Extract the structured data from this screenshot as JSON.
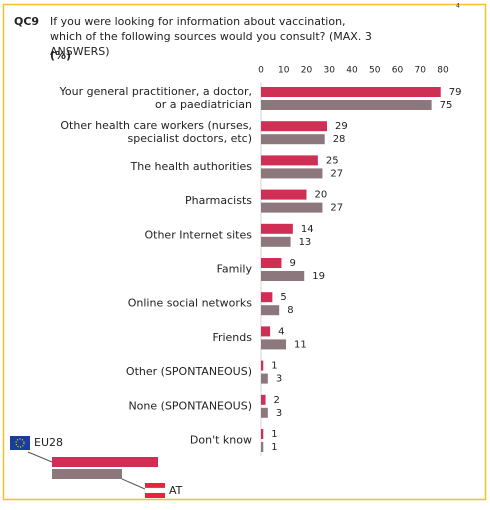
{
  "chart_data": {
    "type": "hbar",
    "question_code": "QC9",
    "title": "If you were looking for information about vaccination, which of the following sources would you consult? (MAX. 3 ANSWERS)",
    "unit_label": "(%)",
    "corner_note": "4",
    "categories": [
      "Your general practitioner, a doctor,\nor a paediatrician",
      "Other health care workers (nurses,\nspecialist doctors, etc)",
      "The health authorities",
      "Pharmacists",
      "Other Internet sites",
      "Family",
      "Online social networks",
      "Friends",
      "Other (SPONTANEOUS)",
      "None (SPONTANEOUS)",
      "Don't know"
    ],
    "series": [
      {
        "name": "EU28",
        "color": "#cf2f55",
        "values": [
          79,
          29,
          25,
          20,
          14,
          9,
          5,
          4,
          1,
          2,
          1
        ]
      },
      {
        "name": "AT",
        "color": "#8c777d",
        "values": [
          75,
          28,
          27,
          27,
          13,
          19,
          8,
          11,
          3,
          3,
          1
        ]
      }
    ],
    "xlim": [
      0,
      80
    ],
    "xticks": [
      0,
      10,
      20,
      30,
      40,
      50,
      60,
      70,
      80
    ]
  }
}
